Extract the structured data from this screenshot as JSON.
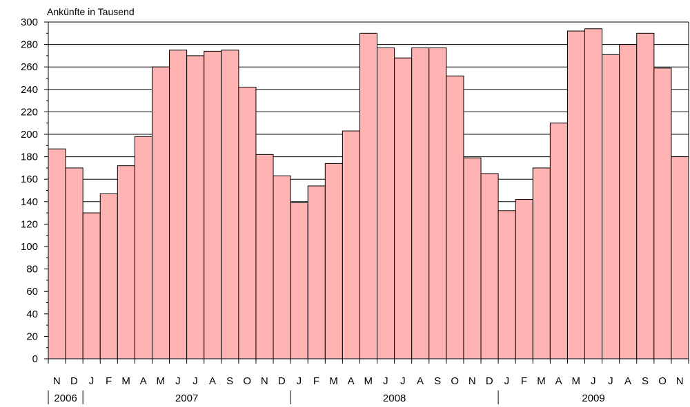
{
  "chart_data": {
    "type": "bar",
    "ylabel": "Ankünfte in Tausend",
    "ylim": [
      0,
      300
    ],
    "yticks": [
      "0",
      "20",
      "40",
      "60",
      "80",
      "100",
      "120",
      "140",
      "160",
      "180",
      "200",
      "220",
      "240",
      "260",
      "280",
      "300"
    ],
    "grid": "horizontal",
    "categories": [
      "N",
      "D",
      "J",
      "F",
      "M",
      "A",
      "M",
      "J",
      "J",
      "A",
      "S",
      "O",
      "N",
      "D",
      "J",
      "F",
      "M",
      "A",
      "M",
      "J",
      "J",
      "A",
      "S",
      "O",
      "N",
      "D",
      "J",
      "F",
      "M",
      "A",
      "M",
      "J",
      "J",
      "A",
      "S",
      "O",
      "N"
    ],
    "values": [
      187,
      170,
      130,
      147,
      172,
      198,
      260,
      275,
      270,
      274,
      275,
      242,
      182,
      163,
      139,
      154,
      174,
      203,
      290,
      277,
      268,
      277,
      277,
      252,
      179,
      165,
      132,
      142,
      170,
      210,
      292,
      294,
      271,
      280,
      290,
      259,
      180
    ],
    "year_groups": [
      {
        "label": "2006",
        "start": 0,
        "end": 2
      },
      {
        "label": "2007",
        "start": 2,
        "end": 14
      },
      {
        "label": "2008",
        "start": 14,
        "end": 26
      },
      {
        "label": "2009",
        "start": 26,
        "end": 37
      }
    ]
  }
}
